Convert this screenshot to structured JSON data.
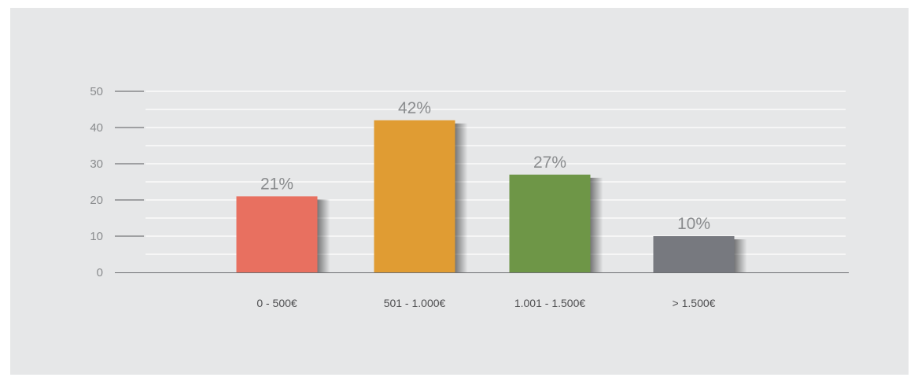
{
  "chart_data": {
    "type": "bar",
    "categories": [
      "0 - 500€",
      "501 - 1.000€",
      "1.001 - 1.500€",
      "> 1.500€"
    ],
    "values": [
      21,
      42,
      27,
      10
    ],
    "data_labels": [
      "21%",
      "42%",
      "27%",
      "10%"
    ],
    "ylim": [
      0,
      50
    ],
    "yticks": [
      "0",
      "10",
      "20",
      "30",
      "40",
      "50"
    ],
    "grid": true,
    "colors": [
      "#e87060",
      "#e09c33",
      "#6e9647",
      "#77797f"
    ],
    "background": "#e6e7e8"
  }
}
